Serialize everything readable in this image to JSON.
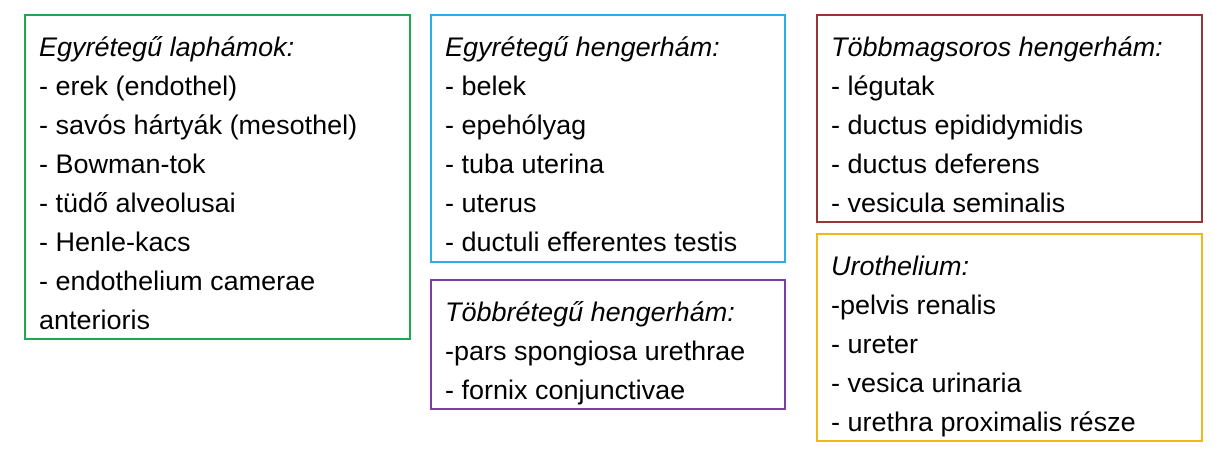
{
  "boxes": {
    "green": {
      "title": "Egyrétegű laphámok:",
      "items": [
        "- erek (endothel)",
        "- savós hártyák (mesothel)",
        "- Bowman-tok",
        "- tüdő alveolusai",
        "- Henle-kacs",
        "- endothelium camerae anterioris"
      ],
      "border_color": "#1fa84f"
    },
    "blue": {
      "title": "Egyrétegű hengerhám:",
      "items": [
        "- belek",
        "- epehólyag",
        "- tuba uterina",
        "- uterus",
        "- ductuli efferentes testis"
      ],
      "border_color": "#27b0e6"
    },
    "purple": {
      "title": "Többrétegű hengerhám:",
      "items": [
        "-pars spongiosa urethrae",
        "- fornix conjunctivae"
      ],
      "border_color": "#7b3fa0"
    },
    "red": {
      "title": "Többmagsoros hengerhám:",
      "items": [
        "- légutak",
        "- ductus epididymidis",
        "- ductus deferens",
        "- vesicula seminalis"
      ],
      "border_color": "#953735"
    },
    "yellow": {
      "title": "Urothelium:",
      "items": [
        "-pelvis renalis",
        "- ureter",
        "- vesica urinaria",
        "- urethra proximalis része"
      ],
      "border_color": "#f3b61f"
    }
  }
}
